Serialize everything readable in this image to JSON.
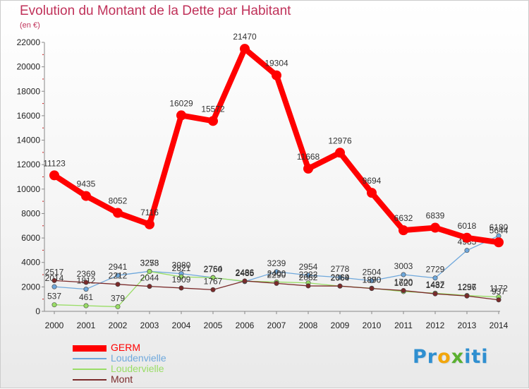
{
  "chart_data": {
    "type": "line",
    "title": "Evolution du Montant de la Dette par Habitant",
    "subtitle": "(en €)",
    "x": [
      "2000",
      "2001",
      "2002",
      "2003",
      "2004",
      "2005",
      "2006",
      "2007",
      "2008",
      "2009",
      "2010",
      "2011",
      "2012",
      "2013",
      "2014"
    ],
    "ylim": [
      0,
      22000
    ],
    "yticks": [
      0,
      2000,
      4000,
      6000,
      8000,
      10000,
      12000,
      14000,
      16000,
      18000,
      20000,
      22000
    ],
    "grid": false,
    "legend_position": "bottom-left",
    "series": [
      {
        "name": "GERM",
        "color": "#ff0000",
        "emphasis": true,
        "values": [
          11123,
          9435,
          8052,
          7116,
          16029,
          15572,
          21470,
          19304,
          11668,
          12976,
          9694,
          6632,
          6839,
          6018,
          5644
        ]
      },
      {
        "name": "Loudenvielle",
        "color": "#6fa8dc",
        "values": [
          2014,
          1812,
          2941,
          3273,
          3080,
          2764,
          2435,
          3239,
          2954,
          2778,
          2504,
          3003,
          2729,
          4985,
          6180
        ]
      },
      {
        "name": "Loudervielle",
        "color": "#99dd66",
        "values": [
          537,
          461,
          379,
          3258,
          2821,
          2750,
          2466,
          2400,
          2322,
          2064,
          1890,
          1620,
          1487,
          1297,
          1172
        ]
      },
      {
        "name": "Mont",
        "color": "#7a2a2a",
        "values": [
          2517,
          2369,
          2212,
          2044,
          1909,
          1767,
          2486,
          2290,
          2082,
          2069,
          1870,
          1700,
          1432,
          1256,
          937
        ]
      }
    ]
  },
  "logo": {
    "letters": [
      "P",
      "r",
      "o",
      "x",
      "i",
      "t",
      "i"
    ],
    "colors": [
      "#2f8fd0",
      "#2f8fd0",
      "#f2a60c",
      "#5bb02f",
      "#2f8fd0",
      "#2f8fd0",
      "#2f8fd0"
    ]
  }
}
